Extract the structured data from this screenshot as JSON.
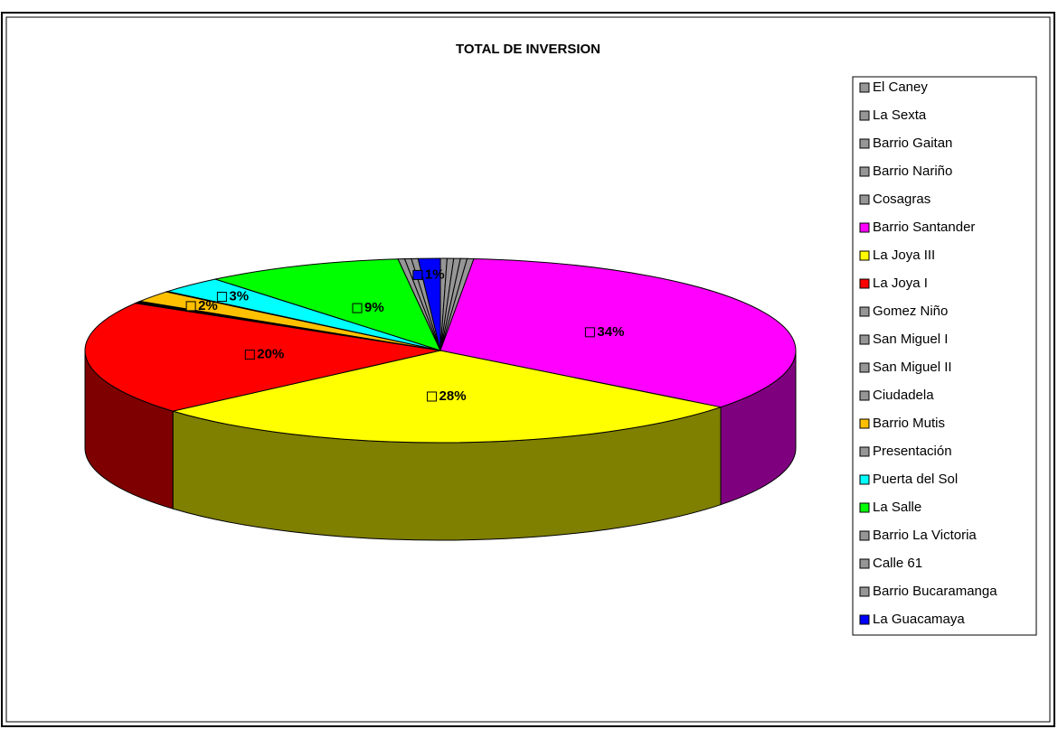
{
  "chart_data": {
    "type": "pie",
    "title": "TOTAL DE INVERSION",
    "categories": [
      "El Caney",
      "La Sexta",
      "Barrio Gaitan",
      "Barrio Nariño",
      "Cosagras",
      "Barrio Santander",
      "La Joya III",
      "La Joya I",
      "Gomez Niño",
      "San Miguel I",
      "San Miguel II",
      "Ciudadela",
      "Barrio Mutis",
      "Presentación",
      "Puerta del Sol",
      "La Salle",
      "Barrio La Victoria",
      "Calle 61",
      "Barrio Bucaramanga",
      "La Guacamaya"
    ],
    "values": [
      0.3,
      0.3,
      0.3,
      0.3,
      0.3,
      34,
      28,
      20,
      0.1,
      0.1,
      0.1,
      0.1,
      2,
      0.1,
      3,
      9,
      0.3,
      0.3,
      0.3,
      1
    ],
    "value_labels": [
      null,
      null,
      null,
      null,
      null,
      "34%",
      "28%",
      "20%",
      null,
      null,
      null,
      null,
      "2%",
      null,
      "3%",
      "9%",
      null,
      null,
      null,
      "1%"
    ],
    "colors": [
      "#969696",
      "#969696",
      "#969696",
      "#969696",
      "#969696",
      "#ff00ff",
      "#ffff00",
      "#ff0000",
      "#969696",
      "#969696",
      "#969696",
      "#969696",
      "#ffc000",
      "#969696",
      "#00ffff",
      "#00ff00",
      "#969696",
      "#969696",
      "#969696",
      "#0000ff"
    ],
    "legend": "right"
  }
}
